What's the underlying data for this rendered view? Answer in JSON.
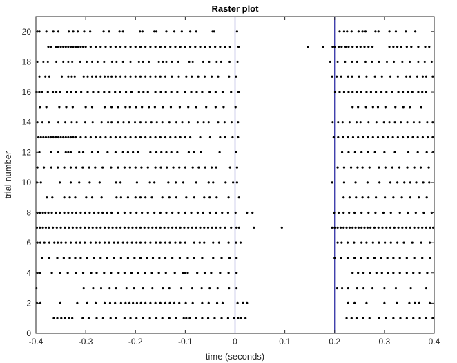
{
  "chart_data": {
    "type": "scatter",
    "title": "Raster plot",
    "xlabel": "time (seconds)",
    "ylabel": "trial number",
    "xlim": [
      -0.4,
      0.4
    ],
    "ylim": [
      0,
      21
    ],
    "x_ticks": [
      -0.4,
      -0.3,
      -0.2,
      -0.1,
      0,
      0.1,
      0.2,
      0.3,
      0.4
    ],
    "x_tick_labels": [
      "-0.4",
      "-0.3",
      "-0.2",
      "-0.1",
      "0",
      "0.1",
      "0.2",
      "0.3",
      "0.4"
    ],
    "y_ticks": [
      0,
      2,
      4,
      6,
      8,
      10,
      12,
      14,
      16,
      18,
      20
    ],
    "y_tick_labels": [
      "0",
      "2",
      "4",
      "6",
      "8",
      "10",
      "12",
      "14",
      "16",
      "18",
      "20"
    ],
    "grid": false,
    "vlines": [
      {
        "x": 0,
        "color": "#1f1f9e"
      },
      {
        "x": 0.2,
        "color": "#1f1f9e"
      }
    ],
    "marker_color": "#000000",
    "trials": [
      {
        "trial": 20,
        "spikes": [
          -0.397,
          -0.393,
          -0.379,
          -0.365,
          -0.355,
          -0.334,
          -0.325,
          -0.316,
          -0.303,
          -0.291,
          -0.264,
          -0.253,
          -0.232,
          -0.225,
          -0.191,
          -0.186,
          -0.162,
          -0.158,
          -0.138,
          -0.122,
          -0.107,
          -0.09,
          -0.078,
          -0.045,
          -0.042,
          0.004,
          0.21,
          0.219,
          0.225,
          0.234,
          0.248,
          0.256,
          0.262,
          0.282,
          0.288,
          0.31,
          0.323,
          0.343,
          0.362
        ]
      },
      {
        "trial": 19,
        "spikes": [
          -0.375,
          -0.37,
          -0.36,
          -0.356,
          -0.35,
          -0.345,
          -0.34,
          -0.335,
          -0.33,
          -0.325,
          -0.32,
          -0.315,
          -0.31,
          -0.305,
          -0.3,
          -0.29,
          -0.28,
          -0.27,
          -0.26,
          -0.25,
          -0.24,
          -0.23,
          -0.22,
          -0.21,
          -0.2,
          -0.19,
          -0.18,
          -0.17,
          -0.16,
          -0.15,
          -0.14,
          -0.13,
          -0.12,
          -0.11,
          -0.1,
          -0.09,
          -0.08,
          -0.07,
          -0.06,
          -0.05,
          -0.04,
          -0.03,
          -0.02,
          -0.01,
          0.007,
          0.146,
          0.177,
          0.196,
          0.2,
          0.208,
          0.214,
          0.222,
          0.228,
          0.236,
          0.244,
          0.252,
          0.26,
          0.268,
          0.276,
          0.31,
          0.318,
          0.326,
          0.334,
          0.345,
          0.354,
          0.368,
          0.382,
          0.39
        ]
      },
      {
        "trial": 18,
        "spikes": [
          -0.397,
          -0.385,
          -0.376,
          -0.359,
          -0.345,
          -0.335,
          -0.327,
          -0.311,
          -0.298,
          -0.287,
          -0.276,
          -0.263,
          -0.247,
          -0.238,
          -0.225,
          -0.21,
          -0.193,
          -0.185,
          -0.173,
          -0.153,
          -0.145,
          -0.138,
          -0.127,
          -0.114,
          -0.092,
          -0.085,
          -0.064,
          -0.052,
          -0.037,
          -0.028,
          -0.011,
          0.005,
          0.191,
          0.206,
          0.221,
          0.235,
          0.245,
          0.262,
          0.275,
          0.289,
          0.305,
          0.319,
          0.336,
          0.351,
          0.368,
          0.381,
          0.395
        ]
      },
      {
        "trial": 17,
        "spikes": [
          -0.393,
          -0.381,
          -0.373,
          -0.348,
          -0.335,
          -0.328,
          -0.322,
          -0.304,
          -0.296,
          -0.287,
          -0.279,
          -0.27,
          -0.262,
          -0.255,
          -0.248,
          -0.24,
          -0.23,
          -0.22,
          -0.21,
          -0.2,
          -0.19,
          -0.18,
          -0.17,
          -0.16,
          -0.15,
          -0.14,
          -0.127,
          -0.113,
          -0.098,
          -0.087,
          -0.074,
          -0.061,
          -0.047,
          -0.034,
          -0.012,
          0.002,
          0.195,
          0.204,
          0.213,
          0.227,
          0.235,
          0.249,
          0.264,
          0.281,
          0.295,
          0.312,
          0.327,
          0.344,
          0.352,
          0.366,
          0.377,
          0.384,
          0.397
        ]
      },
      {
        "trial": 16,
        "spikes": [
          -0.399,
          -0.393,
          -0.387,
          -0.376,
          -0.366,
          -0.359,
          -0.352,
          -0.337,
          -0.329,
          -0.32,
          -0.309,
          -0.296,
          -0.285,
          -0.274,
          -0.263,
          -0.252,
          -0.241,
          -0.231,
          -0.219,
          -0.208,
          -0.193,
          -0.184,
          -0.175,
          -0.16,
          -0.149,
          -0.139,
          -0.128,
          -0.116,
          -0.101,
          -0.088,
          -0.077,
          -0.066,
          -0.051,
          -0.039,
          -0.025,
          -0.008,
          0.007,
          0.201,
          0.21,
          0.219,
          0.228,
          0.236,
          0.244,
          0.253,
          0.264,
          0.273,
          0.283,
          0.294,
          0.304,
          0.316,
          0.328,
          0.337,
          0.348,
          0.356,
          0.368,
          0.376,
          0.384
        ]
      },
      {
        "trial": 15,
        "spikes": [
          -0.392,
          -0.379,
          -0.353,
          -0.339,
          -0.326,
          -0.3,
          -0.287,
          -0.262,
          -0.248,
          -0.235,
          -0.22,
          -0.211,
          -0.199,
          -0.187,
          -0.173,
          -0.161,
          -0.145,
          -0.129,
          -0.111,
          -0.094,
          -0.078,
          -0.058,
          -0.039,
          -0.023,
          0.001,
          0.236,
          0.247,
          0.263,
          0.277,
          0.287,
          0.302,
          0.322,
          0.338,
          0.351,
          0.374
        ]
      },
      {
        "trial": 14,
        "spikes": [
          -0.397,
          -0.387,
          -0.374,
          -0.355,
          -0.341,
          -0.328,
          -0.318,
          -0.301,
          -0.286,
          -0.268,
          -0.255,
          -0.248,
          -0.235,
          -0.224,
          -0.213,
          -0.201,
          -0.19,
          -0.179,
          -0.168,
          -0.157,
          -0.146,
          -0.132,
          -0.118,
          -0.106,
          -0.093,
          -0.075,
          -0.063,
          -0.053,
          -0.034,
          -0.021,
          -0.007,
          0.006,
          0.196,
          0.207,
          0.216,
          0.23,
          0.244,
          0.252,
          0.268,
          0.284,
          0.299,
          0.31,
          0.321,
          0.333,
          0.346,
          0.359,
          0.371,
          0.386,
          0.397
        ]
      },
      {
        "trial": 13,
        "spikes": [
          -0.395,
          -0.39,
          -0.385,
          -0.38,
          -0.375,
          -0.37,
          -0.365,
          -0.36,
          -0.355,
          -0.35,
          -0.345,
          -0.34,
          -0.335,
          -0.33,
          -0.325,
          -0.32,
          -0.31,
          -0.3,
          -0.29,
          -0.28,
          -0.27,
          -0.26,
          -0.25,
          -0.24,
          -0.23,
          -0.22,
          -0.21,
          -0.2,
          -0.19,
          -0.18,
          -0.17,
          -0.16,
          -0.15,
          -0.14,
          -0.13,
          -0.12,
          -0.11,
          -0.1,
          -0.09,
          -0.07,
          -0.05,
          -0.03,
          -0.02,
          -0.005,
          0.006,
          0.198,
          0.207,
          0.217,
          0.227,
          0.237,
          0.247,
          0.257,
          0.267,
          0.277,
          0.287,
          0.297,
          0.307,
          0.317,
          0.327,
          0.337,
          0.347,
          0.357,
          0.367,
          0.377,
          0.387,
          0.397
        ]
      },
      {
        "trial": 12,
        "spikes": [
          -0.393,
          -0.37,
          -0.355,
          -0.34,
          -0.335,
          -0.33,
          -0.313,
          -0.305,
          -0.287,
          -0.275,
          -0.256,
          -0.24,
          -0.225,
          -0.215,
          -0.205,
          -0.195,
          -0.17,
          -0.158,
          -0.148,
          -0.138,
          -0.128,
          -0.116,
          -0.093,
          -0.083,
          -0.069,
          -0.031,
          0.002,
          0.215,
          0.228,
          0.241,
          0.254,
          0.267,
          0.281,
          0.3,
          0.321,
          0.348,
          0.367,
          0.385,
          0.398
        ]
      },
      {
        "trial": 11,
        "spikes": [
          -0.397,
          -0.384,
          -0.369,
          -0.356,
          -0.343,
          -0.33,
          -0.319,
          -0.306,
          -0.293,
          -0.281,
          -0.266,
          -0.249,
          -0.235,
          -0.222,
          -0.211,
          -0.2,
          -0.188,
          -0.175,
          -0.16,
          -0.149,
          -0.137,
          -0.124,
          -0.112,
          -0.1,
          -0.085,
          -0.073,
          -0.06,
          -0.047,
          -0.038,
          -0.01,
          0.004,
          0.206,
          0.219,
          0.233,
          0.246,
          0.256,
          0.27,
          0.289,
          0.302,
          0.316,
          0.33,
          0.346,
          0.36,
          0.373,
          0.389
        ]
      },
      {
        "trial": 10,
        "spikes": [
          -0.398,
          -0.39,
          -0.352,
          -0.33,
          -0.313,
          -0.292,
          -0.272,
          -0.239,
          -0.23,
          -0.197,
          -0.171,
          -0.162,
          -0.134,
          -0.119,
          -0.104,
          -0.078,
          -0.053,
          -0.044,
          -0.019,
          -0.004,
          0.004,
          0.195,
          0.219,
          0.242,
          0.266,
          0.29,
          0.312,
          0.326,
          0.34,
          0.352,
          0.364,
          0.378,
          0.39
        ]
      },
      {
        "trial": 9,
        "spikes": [
          -0.378,
          -0.367,
          -0.343,
          -0.332,
          -0.321,
          -0.299,
          -0.287,
          -0.268,
          -0.238,
          -0.229,
          -0.215,
          -0.2,
          -0.19,
          -0.18,
          -0.167,
          -0.146,
          -0.132,
          -0.118,
          -0.098,
          -0.082,
          -0.062,
          -0.051,
          -0.037,
          -0.013,
          0.008,
          0.218,
          0.23,
          0.243,
          0.256,
          0.268,
          0.283,
          0.301,
          0.318,
          0.335,
          0.352,
          0.369,
          0.385
        ]
      },
      {
        "trial": 8,
        "spikes": [
          -0.397,
          -0.392,
          -0.386,
          -0.381,
          -0.375,
          -0.368,
          -0.36,
          -0.352,
          -0.343,
          -0.335,
          -0.327,
          -0.319,
          -0.31,
          -0.301,
          -0.292,
          -0.283,
          -0.274,
          -0.266,
          -0.257,
          -0.248,
          -0.235,
          -0.222,
          -0.21,
          -0.198,
          -0.187,
          -0.175,
          -0.162,
          -0.15,
          -0.138,
          -0.126,
          -0.113,
          -0.1,
          -0.088,
          -0.075,
          -0.064,
          -0.05,
          -0.038,
          -0.026,
          -0.014,
          0.001,
          0.024,
          0.035,
          0.199,
          0.208,
          0.218,
          0.229,
          0.24,
          0.254,
          0.268,
          0.282,
          0.298,
          0.313,
          0.331,
          0.347,
          0.363,
          0.379,
          0.395
        ]
      },
      {
        "trial": 7,
        "spikes": [
          -0.398,
          -0.392,
          -0.386,
          -0.38,
          -0.374,
          -0.366,
          -0.358,
          -0.35,
          -0.342,
          -0.334,
          -0.326,
          -0.318,
          -0.31,
          -0.302,
          -0.294,
          -0.286,
          -0.278,
          -0.27,
          -0.262,
          -0.254,
          -0.246,
          -0.238,
          -0.23,
          -0.222,
          -0.214,
          -0.206,
          -0.198,
          -0.19,
          -0.182,
          -0.174,
          -0.166,
          -0.158,
          -0.15,
          -0.142,
          -0.134,
          -0.126,
          -0.118,
          -0.11,
          -0.102,
          -0.094,
          -0.086,
          -0.078,
          -0.07,
          -0.062,
          -0.054,
          -0.046,
          -0.038,
          -0.03,
          -0.02,
          -0.008,
          0.003,
          0.008,
          0.038,
          0.094,
          0.195,
          0.2,
          0.206,
          0.212,
          0.218,
          0.224,
          0.23,
          0.236,
          0.242,
          0.248,
          0.254,
          0.26,
          0.266,
          0.272,
          0.28,
          0.288,
          0.296,
          0.304,
          0.312,
          0.32,
          0.328,
          0.336,
          0.344,
          0.352,
          0.36,
          0.368,
          0.376,
          0.384,
          0.392,
          0.398
        ]
      },
      {
        "trial": 6,
        "spikes": [
          -0.397,
          -0.391,
          -0.383,
          -0.373,
          -0.363,
          -0.356,
          -0.349,
          -0.34,
          -0.33,
          -0.319,
          -0.311,
          -0.302,
          -0.29,
          -0.28,
          -0.272,
          -0.262,
          -0.253,
          -0.243,
          -0.235,
          -0.225,
          -0.216,
          -0.207,
          -0.198,
          -0.19,
          -0.18,
          -0.17,
          -0.159,
          -0.15,
          -0.14,
          -0.131,
          -0.12,
          -0.11,
          -0.1,
          -0.082,
          -0.071,
          -0.062,
          -0.044,
          -0.032,
          -0.013,
          0.002,
          0.011,
          0.206,
          0.214,
          0.226,
          0.239,
          0.254,
          0.264,
          0.277,
          0.289,
          0.301,
          0.313,
          0.326,
          0.339,
          0.356,
          0.374,
          0.391
        ]
      },
      {
        "trial": 5,
        "spikes": [
          -0.387,
          -0.373,
          -0.357,
          -0.344,
          -0.332,
          -0.321,
          -0.31,
          -0.297,
          -0.283,
          -0.27,
          -0.257,
          -0.243,
          -0.229,
          -0.215,
          -0.202,
          -0.19,
          -0.177,
          -0.165,
          -0.152,
          -0.14,
          -0.126,
          -0.111,
          -0.095,
          -0.082,
          -0.066,
          -0.044,
          -0.027,
          -0.011,
          0.003,
          0.2,
          0.213,
          0.226,
          0.24,
          0.253,
          0.266,
          0.28,
          0.293,
          0.306,
          0.318,
          0.331,
          0.345,
          0.36,
          0.376,
          0.392
        ]
      },
      {
        "trial": 4,
        "spikes": [
          -0.397,
          -0.392,
          -0.368,
          -0.352,
          -0.336,
          -0.32,
          -0.305,
          -0.289,
          -0.278,
          -0.263,
          -0.249,
          -0.234,
          -0.222,
          -0.208,
          -0.195,
          -0.181,
          -0.167,
          -0.153,
          -0.139,
          -0.121,
          -0.105,
          -0.1,
          -0.095,
          -0.076,
          -0.061,
          -0.048,
          -0.03,
          -0.013,
          0.003,
          0.236,
          0.247,
          0.258,
          0.271,
          0.284,
          0.295,
          0.307,
          0.318,
          0.331,
          0.345,
          0.358,
          0.371,
          0.386
        ]
      },
      {
        "trial": 3,
        "spikes": [
          -0.399,
          -0.304,
          -0.285,
          -0.269,
          -0.252,
          -0.239,
          -0.218,
          -0.203,
          -0.185,
          -0.166,
          -0.145,
          -0.132,
          -0.108,
          -0.086,
          -0.067,
          -0.051,
          -0.035,
          -0.012,
          0.003,
          0.205,
          0.215,
          0.227,
          0.245,
          0.258,
          0.276,
          0.3,
          0.323,
          0.353,
          0.384
        ]
      },
      {
        "trial": 2,
        "spikes": [
          -0.398,
          -0.391,
          -0.351,
          -0.317,
          -0.297,
          -0.28,
          -0.262,
          -0.251,
          -0.241,
          -0.229,
          -0.22,
          -0.212,
          -0.205,
          -0.197,
          -0.189,
          -0.18,
          -0.17,
          -0.16,
          -0.15,
          -0.14,
          -0.131,
          -0.122,
          -0.112,
          -0.099,
          -0.085,
          -0.066,
          -0.053,
          -0.036,
          -0.025,
          0.005,
          0.016,
          0.024,
          0.227,
          0.24,
          0.264,
          0.3,
          0.325,
          0.35,
          0.361,
          0.37,
          0.391
        ]
      },
      {
        "trial": 1,
        "spikes": [
          -0.364,
          -0.357,
          -0.349,
          -0.342,
          -0.334,
          -0.327,
          -0.306,
          -0.294,
          -0.278,
          -0.265,
          -0.25,
          -0.239,
          -0.222,
          -0.21,
          -0.198,
          -0.185,
          -0.171,
          -0.158,
          -0.146,
          -0.132,
          -0.119,
          -0.103,
          -0.098,
          -0.091,
          -0.078,
          -0.066,
          -0.054,
          -0.041,
          -0.027,
          -0.014,
          -0.002,
          0.006,
          0.012,
          0.021,
          0.224,
          0.234,
          0.244,
          0.257,
          0.27,
          0.289,
          0.303,
          0.318,
          0.332,
          0.345,
          0.358,
          0.371,
          0.384,
          0.397
        ]
      }
    ]
  }
}
